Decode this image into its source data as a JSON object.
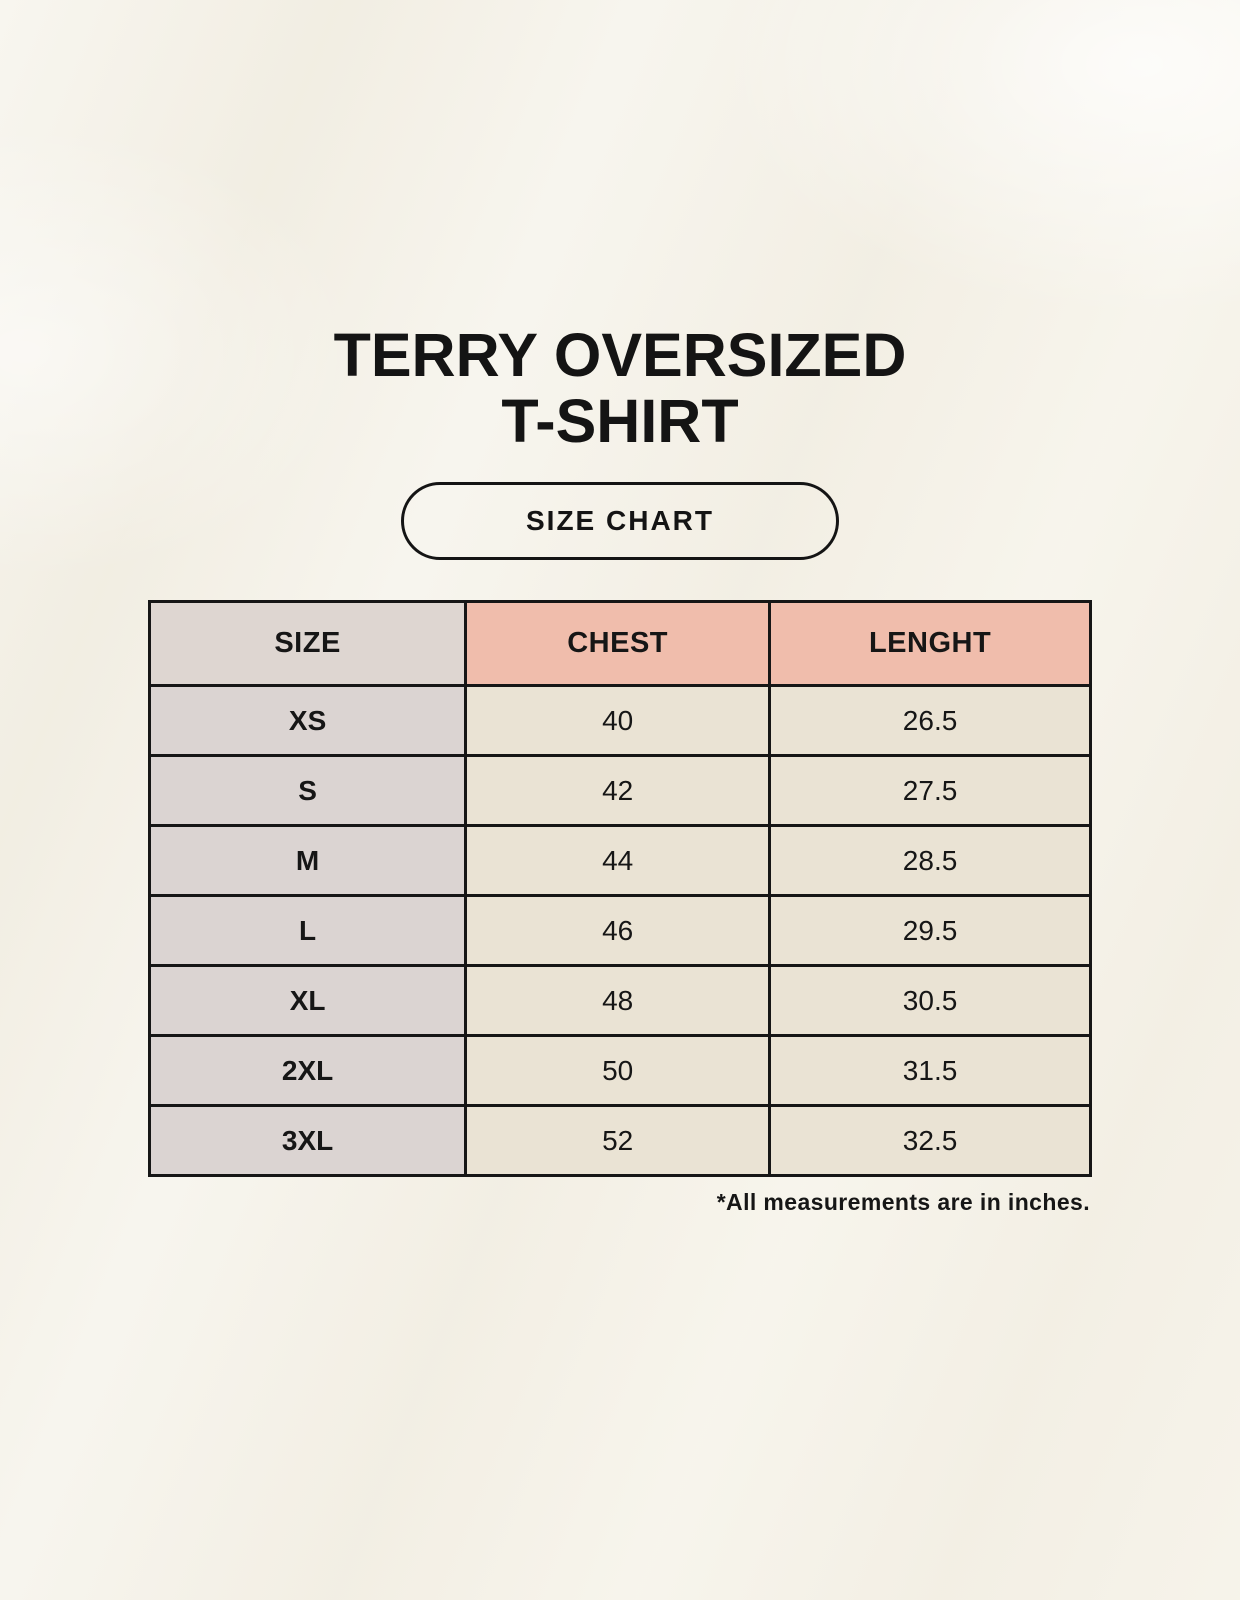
{
  "header": {
    "title_line1": "TERRY OVERSIZED",
    "title_line2": "T-SHIRT",
    "badge_label": "SIZE CHART"
  },
  "chart_data": {
    "type": "table",
    "title": "TERRY OVERSIZED T-SHIRT",
    "subtitle": "SIZE CHART",
    "columns": [
      "SIZE",
      "CHEST",
      "LENGHT"
    ],
    "units_note": "*All measurements are in inches.",
    "rows": [
      {
        "size": "XS",
        "chest": "40",
        "length": "26.5"
      },
      {
        "size": "S",
        "chest": "42",
        "length": "27.5"
      },
      {
        "size": "M",
        "chest": "44",
        "length": "28.5"
      },
      {
        "size": "L",
        "chest": "46",
        "length": "29.5"
      },
      {
        "size": "XL",
        "chest": "48",
        "length": "30.5"
      },
      {
        "size": "2XL",
        "chest": "50",
        "length": "31.5"
      },
      {
        "size": "3XL",
        "chest": "52",
        "length": "32.5"
      }
    ]
  },
  "colors": {
    "background": "#f4f1e7",
    "header_pink": "#f0bdac",
    "header_gray": "#ded6d1",
    "row_label_gray": "#dbd4d2",
    "cell_cream": "#eae3d4",
    "border": "#161616",
    "text": "#141414"
  }
}
